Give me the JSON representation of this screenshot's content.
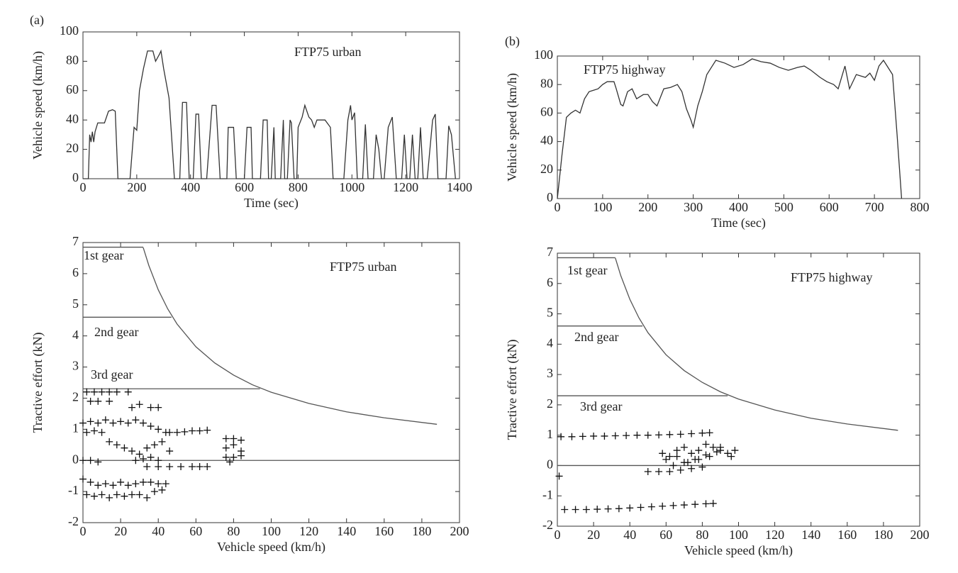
{
  "chart_data": [
    {
      "type": "line",
      "panel_label": "(a)",
      "x_label": "Time (sec)",
      "y_label": "Vehicle speed (km/h)",
      "annotations": [
        "FTP75 urban"
      ],
      "xlim": [
        0,
        1400
      ],
      "xticks": [
        0,
        200,
        400,
        600,
        800,
        1000,
        1200,
        1400
      ],
      "ylim": [
        0,
        100
      ],
      "yticks": [
        0,
        20,
        40,
        60,
        80,
        100
      ],
      "x": [
        0,
        20,
        25,
        30,
        35,
        40,
        45,
        55,
        80,
        95,
        110,
        120,
        130,
        175,
        190,
        200,
        210,
        225,
        240,
        260,
        270,
        285,
        290,
        300,
        320,
        340,
        360,
        370,
        385,
        395,
        410,
        420,
        430,
        440,
        460,
        480,
        495,
        510,
        535,
        540,
        560,
        570,
        600,
        610,
        625,
        630,
        660,
        670,
        685,
        690,
        700,
        710,
        715,
        735,
        745,
        750,
        760,
        770,
        775,
        785,
        795,
        800,
        815,
        825,
        840,
        850,
        860,
        870,
        900,
        920,
        930,
        970,
        985,
        995,
        1000,
        1010,
        1020,
        1040,
        1050,
        1060,
        1080,
        1090,
        1100,
        1110,
        1120,
        1135,
        1150,
        1165,
        1185,
        1195,
        1205,
        1215,
        1225,
        1235,
        1245,
        1255,
        1265,
        1280,
        1300,
        1310,
        1320,
        1350,
        1360,
        1370,
        1385
      ],
      "series": [
        {
          "color": "#333333",
          "values": [
            0,
            0,
            30,
            25,
            32,
            25,
            32,
            38,
            38,
            46,
            47,
            46,
            0,
            0,
            35,
            33,
            60,
            75,
            87,
            87,
            80,
            85,
            87,
            75,
            55,
            0,
            0,
            52,
            52,
            0,
            0,
            44,
            44,
            0,
            0,
            50,
            50,
            0,
            0,
            35,
            35,
            0,
            0,
            35,
            35,
            0,
            0,
            40,
            40,
            0,
            0,
            35,
            0,
            0,
            40,
            0,
            0,
            40,
            38,
            0,
            0,
            35,
            42,
            50,
            42,
            40,
            35,
            40,
            40,
            35,
            0,
            0,
            40,
            50,
            40,
            45,
            0,
            0,
            37,
            0,
            0,
            30,
            20,
            0,
            0,
            35,
            42,
            0,
            0,
            30,
            0,
            0,
            30,
            0,
            0,
            35,
            0,
            0,
            40,
            44,
            0,
            0,
            36,
            30,
            0
          ]
        }
      ]
    },
    {
      "type": "line",
      "panel_label": "(b)",
      "x_label": "Time (sec)",
      "y_label": "Vehicle speed (km/h)",
      "annotations": [
        "FTP75 highway"
      ],
      "xlim": [
        0,
        800
      ],
      "xticks": [
        0,
        100,
        200,
        300,
        400,
        500,
        600,
        700,
        800
      ],
      "ylim": [
        0,
        100
      ],
      "yticks": [
        0,
        20,
        40,
        60,
        80,
        100
      ],
      "x": [
        0,
        10,
        20,
        30,
        40,
        50,
        60,
        70,
        90,
        100,
        110,
        125,
        130,
        140,
        145,
        155,
        165,
        175,
        190,
        200,
        210,
        220,
        235,
        250,
        265,
        275,
        285,
        295,
        300,
        310,
        320,
        330,
        340,
        350,
        370,
        390,
        410,
        420,
        430,
        450,
        470,
        490,
        510,
        530,
        545,
        560,
        580,
        595,
        610,
        620,
        635,
        645,
        660,
        680,
        690,
        700,
        710,
        720,
        740,
        750,
        760
      ],
      "series": [
        {
          "color": "#333333",
          "values": [
            0,
            30,
            57,
            60,
            62,
            60,
            70,
            75,
            77,
            80,
            82,
            82,
            77,
            66,
            65,
            75,
            77,
            70,
            73,
            73,
            68,
            65,
            77,
            78,
            80,
            75,
            63,
            55,
            50,
            65,
            75,
            87,
            92,
            97,
            95,
            92,
            94,
            96,
            98,
            96,
            95,
            92,
            90,
            92,
            93,
            90,
            85,
            82,
            80,
            77,
            93,
            77,
            87,
            85,
            88,
            83,
            93,
            97,
            87,
            45,
            0
          ]
        }
      ]
    },
    {
      "type": "scatter",
      "x_label": "Vehicle speed (km/h)",
      "y_label": "Tractive effort (kN)",
      "annotations": [
        "1st gear",
        "2nd gear",
        "3rd gear",
        "FTP75 urban"
      ],
      "xlim": [
        0,
        200
      ],
      "xticks": [
        0,
        20,
        40,
        60,
        80,
        100,
        120,
        140,
        160,
        180,
        200
      ],
      "ylim": [
        -2,
        7
      ],
      "yticks": [
        -2,
        -1,
        0,
        1,
        2,
        3,
        4,
        5,
        6,
        7
      ],
      "color": "#111111",
      "line_color": "#555555",
      "lines": [
        {
          "x": [
            0,
            32
          ],
          "y": [
            6.85,
            6.85
          ]
        },
        {
          "x": [
            32,
            35,
            40,
            45,
            50,
            60,
            70,
            80,
            90,
            100,
            120,
            140,
            160,
            188
          ],
          "y": [
            6.84,
            6.26,
            5.48,
            4.87,
            4.38,
            3.65,
            3.13,
            2.74,
            2.43,
            2.19,
            1.83,
            1.56,
            1.37,
            1.16
          ]
        },
        {
          "x": [
            0,
            47
          ],
          "y": [
            4.6,
            4.6
          ]
        },
        {
          "x": [
            0,
            94
          ],
          "y": [
            2.3,
            2.3
          ]
        },
        {
          "x": [
            0,
            200
          ],
          "y": [
            0,
            0
          ]
        }
      ],
      "x": [
        2,
        6,
        10,
        14,
        18,
        24,
        4,
        8,
        14,
        26,
        30,
        36,
        40,
        0,
        4,
        8,
        12,
        16,
        20,
        24,
        28,
        32,
        36,
        40,
        44,
        46,
        50,
        54,
        58,
        62,
        66,
        2,
        6,
        10,
        14,
        18,
        22,
        26,
        30,
        34,
        38,
        42,
        46,
        0,
        4,
        8,
        28,
        32,
        36,
        40,
        34,
        40,
        46,
        52,
        58,
        62,
        66,
        76,
        80,
        84,
        76,
        80,
        84,
        76,
        80,
        84,
        78,
        0,
        4,
        8,
        12,
        16,
        20,
        24,
        28,
        32,
        36,
        40,
        44,
        2,
        6,
        10,
        14,
        18,
        22,
        26,
        30,
        34,
        38,
        42
      ],
      "values": [
        2.2,
        2.2,
        2.2,
        2.2,
        2.2,
        2.2,
        1.9,
        1.9,
        1.9,
        1.7,
        1.8,
        1.7,
        1.7,
        1.2,
        1.25,
        1.2,
        1.3,
        1.2,
        1.25,
        1.2,
        1.3,
        1.2,
        1.1,
        1.0,
        0.9,
        0.9,
        0.9,
        0.92,
        0.95,
        0.95,
        0.97,
        0.9,
        0.95,
        0.9,
        0.6,
        0.5,
        0.4,
        0.3,
        0.2,
        0.4,
        0.5,
        0.6,
        0.3,
        0,
        0,
        -0.05,
        0,
        0.05,
        0.1,
        0,
        -0.2,
        -0.2,
        -0.2,
        -0.2,
        -0.2,
        -0.2,
        -0.2,
        0.7,
        0.7,
        0.65,
        0.4,
        0.5,
        0.3,
        0.1,
        0.1,
        0.15,
        -0.05,
        -0.6,
        -0.7,
        -0.8,
        -0.75,
        -0.8,
        -0.7,
        -0.8,
        -0.75,
        -0.7,
        -0.7,
        -0.75,
        -0.75,
        -1.1,
        -1.15,
        -1.1,
        -1.2,
        -1.1,
        -1.15,
        -1.1,
        -1.1,
        -1.2,
        -1.0,
        -0.95
      ]
    },
    {
      "type": "scatter",
      "x_label": "Vehicle speed (km/h)",
      "y_label": "Tractive effort (kN)",
      "annotations": [
        "1st gear",
        "2nd gear",
        "3rd gear",
        "FTP75 highway"
      ],
      "xlim": [
        0,
        200
      ],
      "xticks": [
        0,
        20,
        40,
        60,
        80,
        100,
        120,
        140,
        160,
        180,
        200
      ],
      "ylim": [
        -2,
        7
      ],
      "yticks": [
        -2,
        -1,
        0,
        1,
        2,
        3,
        4,
        5,
        6,
        7
      ],
      "color": "#111111",
      "line_color": "#555555",
      "lines": [
        {
          "x": [
            0,
            32
          ],
          "y": [
            6.85,
            6.85
          ]
        },
        {
          "x": [
            32,
            35,
            40,
            45,
            50,
            60,
            70,
            80,
            90,
            100,
            120,
            140,
            160,
            188
          ],
          "y": [
            6.84,
            6.26,
            5.48,
            4.87,
            4.38,
            3.65,
            3.13,
            2.74,
            2.43,
            2.19,
            1.83,
            1.56,
            1.37,
            1.16
          ]
        },
        {
          "x": [
            0,
            47
          ],
          "y": [
            4.6,
            4.6
          ]
        },
        {
          "x": [
            0,
            94
          ],
          "y": [
            2.3,
            2.3
          ]
        },
        {
          "x": [
            0,
            200
          ],
          "y": [
            0,
            0
          ]
        }
      ],
      "x": [
        2,
        8,
        14,
        20,
        26,
        32,
        38,
        44,
        50,
        56,
        62,
        68,
        74,
        80,
        84,
        1,
        4,
        10,
        16,
        22,
        28,
        34,
        40,
        46,
        52,
        58,
        64,
        70,
        76,
        82,
        86,
        58,
        62,
        66,
        70,
        74,
        78,
        82,
        86,
        90,
        94,
        98,
        60,
        66,
        72,
        78,
        84,
        90,
        96,
        64,
        70,
        76,
        82,
        88,
        50,
        56,
        62,
        68,
        74,
        80
      ],
      "values": [
        0.95,
        0.95,
        0.96,
        0.97,
        0.97,
        0.98,
        0.99,
        1.0,
        1.0,
        1.01,
        1.02,
        1.03,
        1.05,
        1.07,
        1.08,
        -0.35,
        -1.45,
        -1.45,
        -1.45,
        -1.44,
        -1.43,
        -1.42,
        -1.4,
        -1.38,
        -1.36,
        -1.34,
        -1.32,
        -1.3,
        -1.28,
        -1.26,
        -1.25,
        0.4,
        0.3,
        0.5,
        0.6,
        0.4,
        0.5,
        0.7,
        0.6,
        0.5,
        0.4,
        0.5,
        0.2,
        0.3,
        0.1,
        0.2,
        0.3,
        0.6,
        0.3,
        0.0,
        0.1,
        0.2,
        0.35,
        0.45,
        -0.2,
        -0.2,
        -0.2,
        -0.15,
        -0.1,
        -0.05
      ]
    }
  ]
}
